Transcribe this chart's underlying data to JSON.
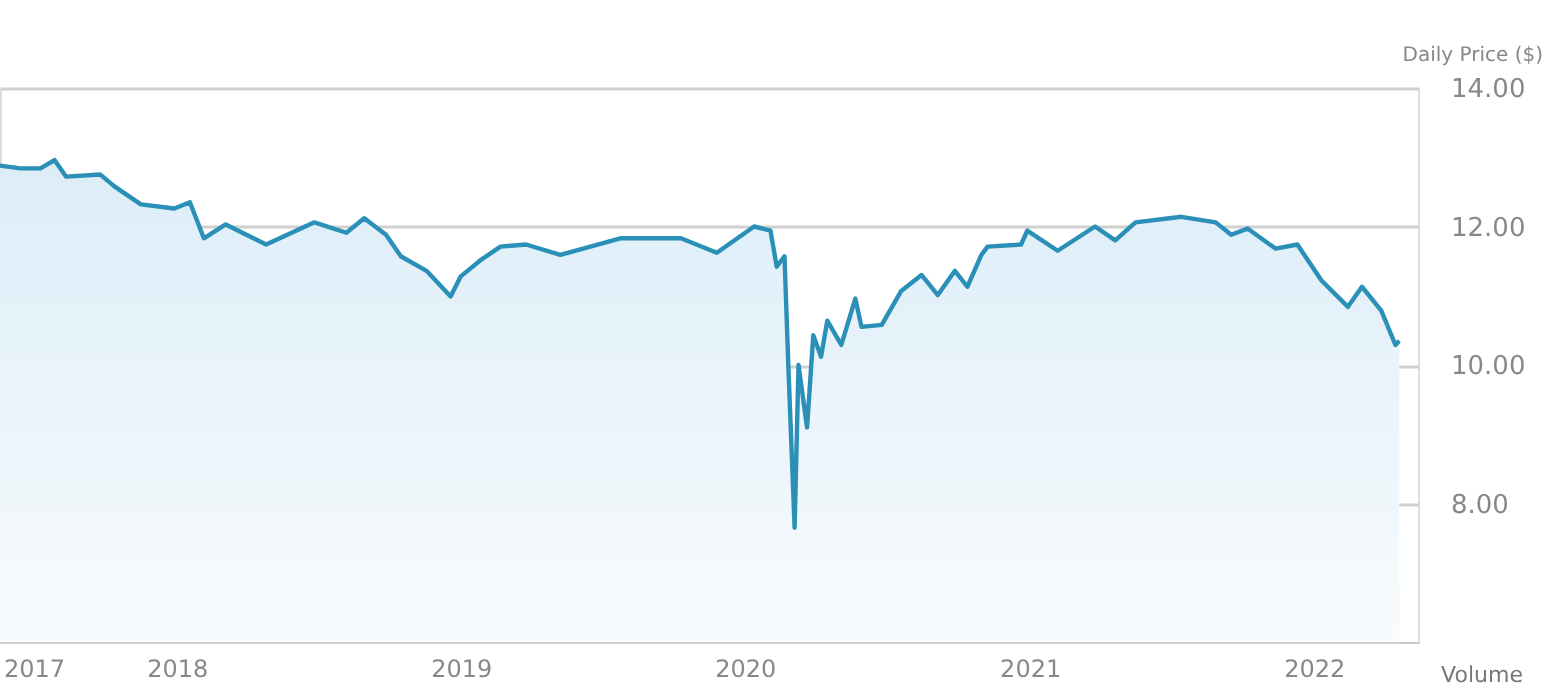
{
  "chart_data": {
    "type": "area",
    "ylabel": "Daily Price ($)",
    "annotations": [
      "Volume"
    ],
    "x": [
      "2017-05-19",
      "2017-06-14",
      "2017-07-10",
      "2017-07-28",
      "2017-08-12",
      "2017-09-25",
      "2017-10-13",
      "2017-11-16",
      "2017-12-29",
      "2018-01-18",
      "2018-02-05",
      "2018-03-05",
      "2018-04-26",
      "2018-06-27",
      "2018-08-07",
      "2018-08-30",
      "2018-09-27",
      "2018-10-16",
      "2018-11-18",
      "2018-12-19",
      "2019-01-01",
      "2019-01-26",
      "2019-02-21",
      "2019-03-26",
      "2019-05-09",
      "2019-07-25",
      "2019-10-11",
      "2019-11-26",
      "2020-01-13",
      "2020-02-03",
      "2020-02-11",
      "2020-02-21",
      "2020-02-26",
      "2020-03-05",
      "2020-03-10",
      "2020-03-21",
      "2020-03-29",
      "2020-04-08",
      "2020-04-16",
      "2020-05-04",
      "2020-05-22",
      "2020-05-30",
      "2020-06-25",
      "2020-07-20",
      "2020-08-15",
      "2020-09-05",
      "2020-09-27",
      "2020-10-13",
      "2020-10-31",
      "2020-11-08",
      "2020-12-21",
      "2020-12-29",
      "2021-02-06",
      "2021-03-26",
      "2021-04-21",
      "2021-05-17",
      "2021-07-15",
      "2021-08-28",
      "2021-09-17",
      "2021-10-08",
      "2021-11-13",
      "2021-12-11",
      "2022-01-11",
      "2022-02-14",
      "2022-03-04",
      "2022-03-29",
      "2022-04-16",
      "2022-04-21"
    ],
    "series": [
      {
        "color": "#2a90b8",
        "values": [
          12.88,
          12.84,
          12.84,
          12.96,
          12.72,
          12.75,
          12.58,
          12.32,
          12.26,
          12.35,
          11.83,
          12.03,
          11.74,
          12.06,
          11.91,
          12.12,
          11.88,
          11.57,
          11.36,
          10.99,
          11.28,
          11.51,
          11.71,
          11.74,
          11.59,
          11.83,
          11.83,
          11.62,
          12.0,
          11.94,
          11.42,
          11.57,
          9.97,
          7.65,
          10.0,
          9.1,
          10.43,
          10.12,
          10.64,
          10.29,
          10.96,
          10.55,
          10.58,
          11.07,
          11.3,
          11.01,
          11.36,
          11.13,
          11.59,
          11.71,
          11.74,
          11.94,
          11.65,
          12.0,
          11.8,
          12.06,
          12.14,
          12.06,
          11.88,
          11.97,
          11.68,
          11.74,
          11.22,
          10.84,
          11.13,
          10.78,
          10.29,
          10.35
        ]
      }
    ],
    "xlim": [
      "2017-05-19",
      "2022-05-15"
    ],
    "xticks": [
      {
        "value": "2017-07-01",
        "label": "2017"
      },
      {
        "value": "2018-01-01",
        "label": "2018"
      },
      {
        "value": "2019-01-01",
        "label": "2019"
      },
      {
        "value": "2020-01-01",
        "label": "2020"
      },
      {
        "value": "2021-01-01",
        "label": "2021"
      },
      {
        "value": "2022-01-01",
        "label": "2022"
      }
    ],
    "ylim": [
      6,
      14
    ],
    "yticks": [
      {
        "value": 8,
        "label": "8.00"
      },
      {
        "value": 10,
        "label": "10.00"
      },
      {
        "value": 12,
        "label": "12.00"
      },
      {
        "value": 14,
        "label": "14.00"
      }
    ],
    "grid": "y"
  }
}
